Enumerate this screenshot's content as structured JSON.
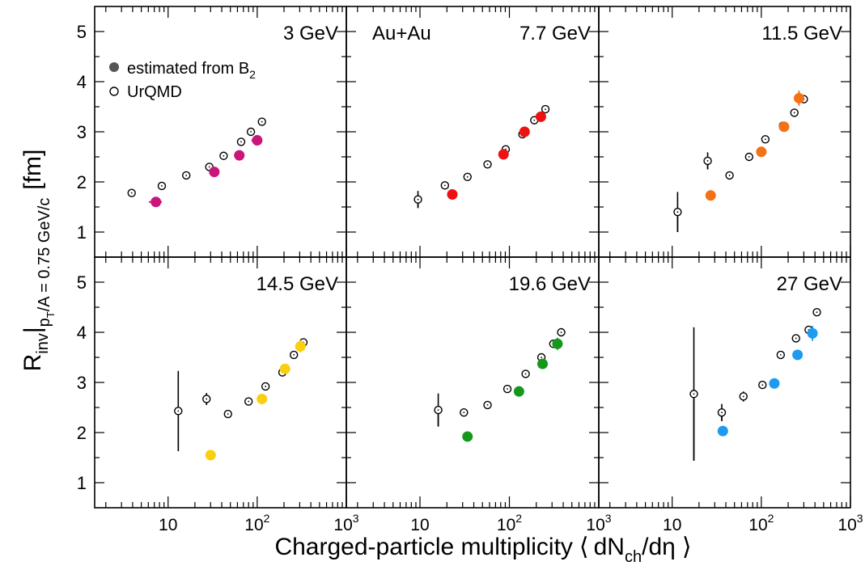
{
  "figure": {
    "y_axis": {
      "main": "R",
      "sub1": "inv",
      "bar": "|",
      "sub2a": "p",
      "sub2b": "T",
      "sub2c": "/A = 0.75 GeV/c",
      "unit": "[fm]"
    },
    "x_axis": {
      "prefix": "Charged-particle multiplicity",
      "left_bracket": "⟨",
      "dN": "dN",
      "ch": "ch",
      "slash": "/dη",
      "right_bracket": "⟩"
    },
    "system_label": "Au+Au",
    "legend": {
      "filled_label": "estimated from B",
      "filled_subscript": "2",
      "open_label": "UrQMD"
    },
    "y_tick_labels": [
      "1",
      "2",
      "3",
      "4",
      "5"
    ],
    "x_tick_labels": [
      "10",
      "10",
      "10"
    ],
    "x_tick_exponents": [
      "",
      "2",
      "3"
    ]
  },
  "chart_data": [
    {
      "type": "scatter",
      "panel": "3 GeV",
      "title": "3 GeV",
      "color": "#c8167a",
      "xscale": "log",
      "xlim": [
        1.5,
        1000
      ],
      "ylim": [
        0.5,
        5.5
      ],
      "ylabel": "R_inv|pT/A = 0.75 GeV/c [fm]",
      "xlabel": "Charged-particle multiplicity <dNch/dη>",
      "series": [
        {
          "name": "estimated from B2",
          "points": [
            {
              "x": 7.3,
              "y": 1.6,
              "xerr": 1.2,
              "yerr": 0
            },
            {
              "x": 33,
              "y": 2.2,
              "xerr": 4,
              "yerr": 0.05
            },
            {
              "x": 63,
              "y": 2.53,
              "xerr": 8,
              "yerr": 0.07
            },
            {
              "x": 100,
              "y": 2.83,
              "xerr": 14,
              "yerr": 0.08
            }
          ]
        },
        {
          "name": "UrQMD",
          "points": [
            {
              "x": 3.9,
              "y": 1.78,
              "yerr": 0
            },
            {
              "x": 8.5,
              "y": 1.92,
              "yerr": 0
            },
            {
              "x": 16,
              "y": 2.13,
              "yerr": 0
            },
            {
              "x": 29,
              "y": 2.3,
              "yerr": 0
            },
            {
              "x": 42,
              "y": 2.52,
              "yerr": 0
            },
            {
              "x": 66,
              "y": 2.8,
              "yerr": 0
            },
            {
              "x": 85,
              "y": 3.0,
              "yerr": 0
            },
            {
              "x": 113,
              "y": 3.2,
              "yerr": 0
            }
          ]
        }
      ]
    },
    {
      "type": "scatter",
      "panel": "7.7 GeV",
      "title": "7.7 GeV",
      "color": "#ee1111",
      "xscale": "log",
      "xlim": [
        1.5,
        1000
      ],
      "ylim": [
        0.5,
        5.5
      ],
      "series": [
        {
          "name": "estimated from B2",
          "points": [
            {
              "x": 23,
              "y": 1.75,
              "yerr": 0
            },
            {
              "x": 86,
              "y": 2.55,
              "yerr": 0.08
            },
            {
              "x": 148,
              "y": 3.0,
              "yerr": 0.1
            },
            {
              "x": 225,
              "y": 3.3,
              "yerr": 0.1
            }
          ]
        },
        {
          "name": "UrQMD",
          "points": [
            {
              "x": 9.5,
              "y": 1.65,
              "yerr": 0.17
            },
            {
              "x": 19,
              "y": 1.93,
              "yerr": 0.08
            },
            {
              "x": 34,
              "y": 2.1,
              "yerr": 0
            },
            {
              "x": 57,
              "y": 2.35,
              "yerr": 0
            },
            {
              "x": 91,
              "y": 2.65,
              "yerr": 0
            },
            {
              "x": 140,
              "y": 2.95,
              "yerr": 0
            },
            {
              "x": 190,
              "y": 3.23,
              "yerr": 0
            },
            {
              "x": 253,
              "y": 3.45,
              "yerr": 0
            }
          ]
        }
      ]
    },
    {
      "type": "scatter",
      "panel": "11.5 GeV",
      "title": "11.5 GeV",
      "color": "#f47216",
      "xscale": "log",
      "xlim": [
        1.5,
        1000
      ],
      "ylim": [
        0.5,
        5.5
      ],
      "series": [
        {
          "name": "estimated from B2",
          "points": [
            {
              "x": 27,
              "y": 1.73,
              "yerr": 0
            },
            {
              "x": 100,
              "y": 2.6,
              "yerr": 0
            },
            {
              "x": 180,
              "y": 3.1,
              "yerr": 0.1
            },
            {
              "x": 265,
              "y": 3.67,
              "yerr": 0.15
            }
          ]
        },
        {
          "name": "UrQMD",
          "points": [
            {
              "x": 11.5,
              "y": 1.4,
              "yerr": 0.4
            },
            {
              "x": 25,
              "y": 2.42,
              "yerr": 0.17
            },
            {
              "x": 44,
              "y": 2.13,
              "yerr": 0
            },
            {
              "x": 73,
              "y": 2.5,
              "yerr": 0
            },
            {
              "x": 111,
              "y": 2.85,
              "yerr": 0
            },
            {
              "x": 175,
              "y": 3.12,
              "yerr": 0
            },
            {
              "x": 235,
              "y": 3.38,
              "yerr": 0
            },
            {
              "x": 300,
              "y": 3.65,
              "yerr": 0
            }
          ]
        }
      ]
    },
    {
      "type": "scatter",
      "panel": "14.5 GeV",
      "title": "14.5 GeV",
      "color": "#f9cf0f",
      "xscale": "log",
      "xlim": [
        1.5,
        1000
      ],
      "ylim": [
        0.5,
        5.5
      ],
      "series": [
        {
          "name": "estimated from B2",
          "points": [
            {
              "x": 30,
              "y": 1.55,
              "yerr": 0
            },
            {
              "x": 113,
              "y": 2.67,
              "yerr": 0
            },
            {
              "x": 205,
              "y": 3.27,
              "yerr": 0.1
            },
            {
              "x": 305,
              "y": 3.72,
              "yerr": 0.12
            }
          ]
        },
        {
          "name": "UrQMD",
          "points": [
            {
              "x": 13,
              "y": 2.43,
              "yerr": 0.8
            },
            {
              "x": 27,
              "y": 2.67,
              "yerr": 0.12
            },
            {
              "x": 47,
              "y": 2.37,
              "yerr": 0
            },
            {
              "x": 80,
              "y": 2.62,
              "yerr": 0
            },
            {
              "x": 124,
              "y": 2.92,
              "yerr": 0
            },
            {
              "x": 192,
              "y": 3.2,
              "yerr": 0
            },
            {
              "x": 258,
              "y": 3.55,
              "yerr": 0
            },
            {
              "x": 330,
              "y": 3.8,
              "yerr": 0
            }
          ]
        }
      ]
    },
    {
      "type": "scatter",
      "panel": "19.6 GeV",
      "title": "19.6 GeV",
      "color": "#15981a",
      "xscale": "log",
      "xlim": [
        1.5,
        1000
      ],
      "ylim": [
        0.5,
        5.5
      ],
      "series": [
        {
          "name": "estimated from B2",
          "points": [
            {
              "x": 34,
              "y": 1.92,
              "yerr": 0
            },
            {
              "x": 128,
              "y": 2.82,
              "yerr": 0.08
            },
            {
              "x": 235,
              "y": 3.37,
              "yerr": 0.1
            },
            {
              "x": 345,
              "y": 3.77,
              "yerr": 0.12
            }
          ]
        },
        {
          "name": "UrQMD",
          "points": [
            {
              "x": 16,
              "y": 2.45,
              "yerr": 0.33
            },
            {
              "x": 31,
              "y": 2.4,
              "yerr": 0.08
            },
            {
              "x": 57,
              "y": 2.55,
              "yerr": 0
            },
            {
              "x": 95,
              "y": 2.87,
              "yerr": 0
            },
            {
              "x": 152,
              "y": 3.17,
              "yerr": 0
            },
            {
              "x": 228,
              "y": 3.5,
              "yerr": 0
            },
            {
              "x": 310,
              "y": 3.77,
              "yerr": 0
            },
            {
              "x": 380,
              "y": 4.0,
              "yerr": 0
            }
          ]
        }
      ]
    },
    {
      "type": "scatter",
      "panel": "27 GeV",
      "title": "27 GeV",
      "color": "#1e9bf0",
      "xscale": "log",
      "xlim": [
        1.5,
        1000
      ],
      "ylim": [
        0.5,
        5.5
      ],
      "series": [
        {
          "name": "estimated from B2",
          "points": [
            {
              "x": 37,
              "y": 2.03,
              "yerr": 0
            },
            {
              "x": 140,
              "y": 2.98,
              "yerr": 0.1
            },
            {
              "x": 255,
              "y": 3.55,
              "yerr": 0.1
            },
            {
              "x": 375,
              "y": 3.98,
              "yerr": 0.15
            }
          ]
        },
        {
          "name": "UrQMD",
          "points": [
            {
              "x": 17.5,
              "y": 2.77,
              "yerr": 1.33
            },
            {
              "x": 36,
              "y": 2.4,
              "yerr": 0.17
            },
            {
              "x": 63,
              "y": 2.72,
              "yerr": 0.1
            },
            {
              "x": 103,
              "y": 2.95,
              "yerr": 0
            },
            {
              "x": 165,
              "y": 3.55,
              "yerr": 0
            },
            {
              "x": 245,
              "y": 3.88,
              "yerr": 0
            },
            {
              "x": 340,
              "y": 4.05,
              "yerr": 0
            },
            {
              "x": 420,
              "y": 4.4,
              "yerr": 0
            }
          ]
        }
      ]
    }
  ]
}
